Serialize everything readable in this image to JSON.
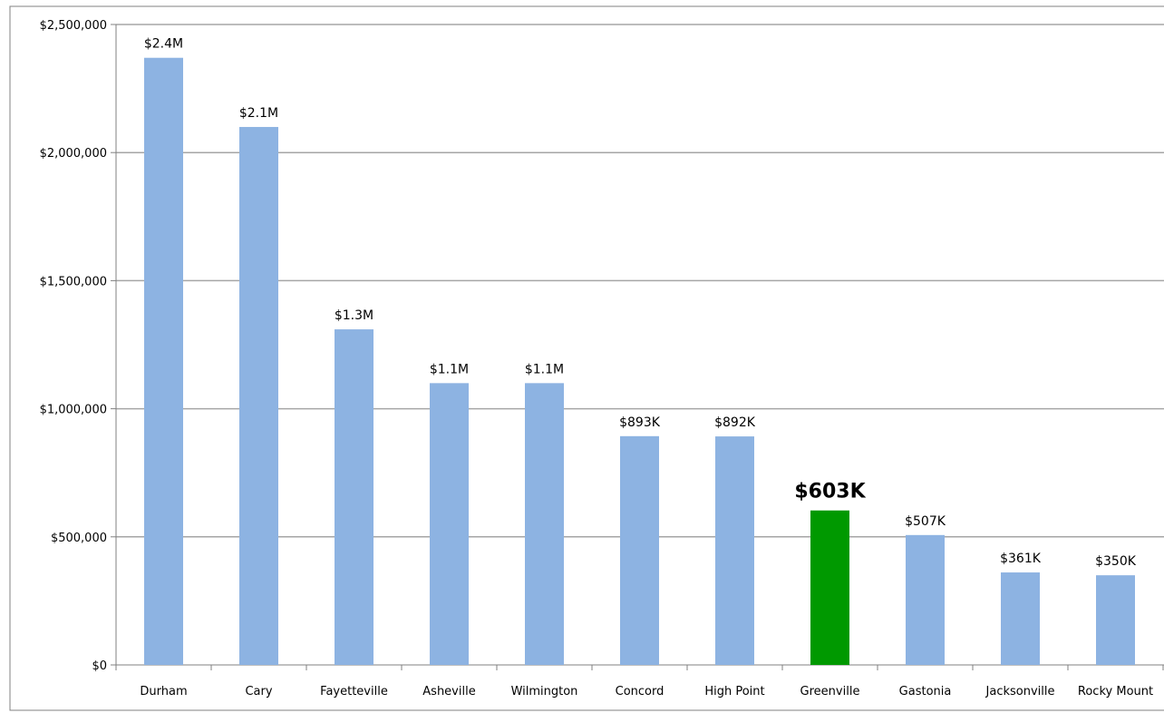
{
  "chart_data": {
    "type": "bar",
    "title": "",
    "xlabel": "",
    "ylabel": "",
    "categories": [
      "Durham",
      "Cary",
      "Fayetteville",
      "Asheville",
      "Wilmington",
      "Concord",
      "High Point",
      "Greenville",
      "Gastonia",
      "Jacksonville",
      "Rocky Mount"
    ],
    "values": [
      2370000,
      2100000,
      1310000,
      1100000,
      1100000,
      893000,
      892000,
      603000,
      507000,
      361000,
      350000
    ],
    "data_labels": [
      "$2.4M",
      "$2.1M",
      "$1.3M",
      "$1.1M",
      "$1.1M",
      "$893K",
      "$892K",
      "$603K",
      "$507K",
      "$361K",
      "$350K"
    ],
    "highlight_category": "Greenville",
    "ylim": [
      0,
      2500000
    ],
    "y_ticks": [
      0,
      500000,
      1000000,
      1500000,
      2000000,
      2500000
    ],
    "y_tick_labels": [
      "$0",
      "$500,000",
      "$1,000,000",
      "$1,500,000",
      "$2,000,000",
      "$2,500,000"
    ],
    "grid": true,
    "legend": "none",
    "colors": {
      "bar": "#8db3e2",
      "highlight_bar": "#009900",
      "gridline": "#a6a6a6",
      "axis": "#808080",
      "border": "#808080"
    }
  }
}
